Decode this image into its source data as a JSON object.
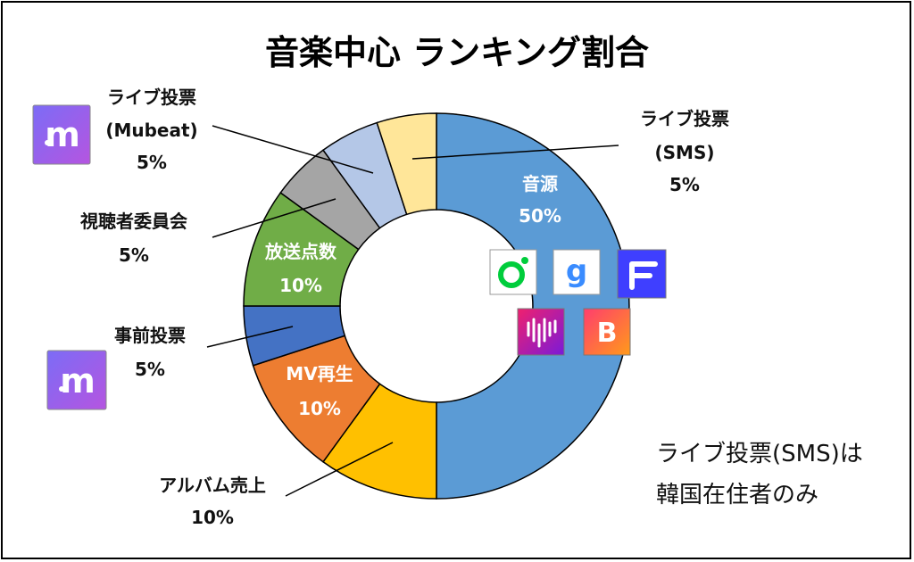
{
  "chart_data": {
    "type": "pie",
    "donut": true,
    "title": "音楽中心 ランキング割合",
    "slices": [
      {
        "label": "音源",
        "value": 50,
        "value_text": "50%",
        "color": "#5b9bd5"
      },
      {
        "label": "アルバム売上",
        "value": 10,
        "value_text": "10%",
        "color": "#ffc000"
      },
      {
        "label": "MV再生",
        "value": 10,
        "value_text": "10%",
        "color": "#ed7d31"
      },
      {
        "label": "事前投票",
        "value": 5,
        "value_text": "5%",
        "color": "#4472c4"
      },
      {
        "label": "放送点数",
        "value": 10,
        "value_text": "10%",
        "color": "#70ad47"
      },
      {
        "label": "視聴者委員会",
        "value": 5,
        "value_text": "5%",
        "color": "#a5a5a5"
      },
      {
        "label": "ライブ投票 (Mubeat)",
        "value": 5,
        "value_text": "5%",
        "color": "#b4c7e7"
      },
      {
        "label": "ライブ投票 (SMS)",
        "value": 5,
        "value_text": "5%",
        "color": "#ffe699"
      }
    ],
    "callouts": {
      "sms": {
        "line1": "ライブ投票",
        "line2": "(SMS)",
        "value": "5%"
      },
      "mubeat": {
        "line1": "ライブ投票",
        "line2": "(Mubeat)",
        "value": "5%"
      },
      "viewers": {
        "line1": "視聴者委員会",
        "value": "5%"
      },
      "preliminary": {
        "line1": "事前投票",
        "value": "5%"
      },
      "album": {
        "line1": "アルバム売上",
        "value": "10%"
      }
    },
    "inner_labels": {
      "source": {
        "name": "音源",
        "value": "50%"
      },
      "broadcast": {
        "name": "放送点数",
        "value": "10%"
      },
      "mv": {
        "name": "MV再生",
        "value": "10%"
      }
    }
  },
  "note": {
    "line1": "ライブ投票(SMS)は",
    "line2": "韓国在住者のみ"
  },
  "icons": {
    "mubeat_letter": "m",
    "music_service_icons": [
      "melon-icon",
      "genie-icon",
      "flo-icon",
      "vibe-icon",
      "bugs-icon"
    ],
    "genie_letter": "g",
    "bugs_letter": "B"
  },
  "colors": {
    "melon": "#00cd3c",
    "genie": "#3a8cff",
    "flo": "#3f3fff",
    "mubeat_start": "#6f6bf5",
    "mubeat_end": "#b35ae3"
  }
}
